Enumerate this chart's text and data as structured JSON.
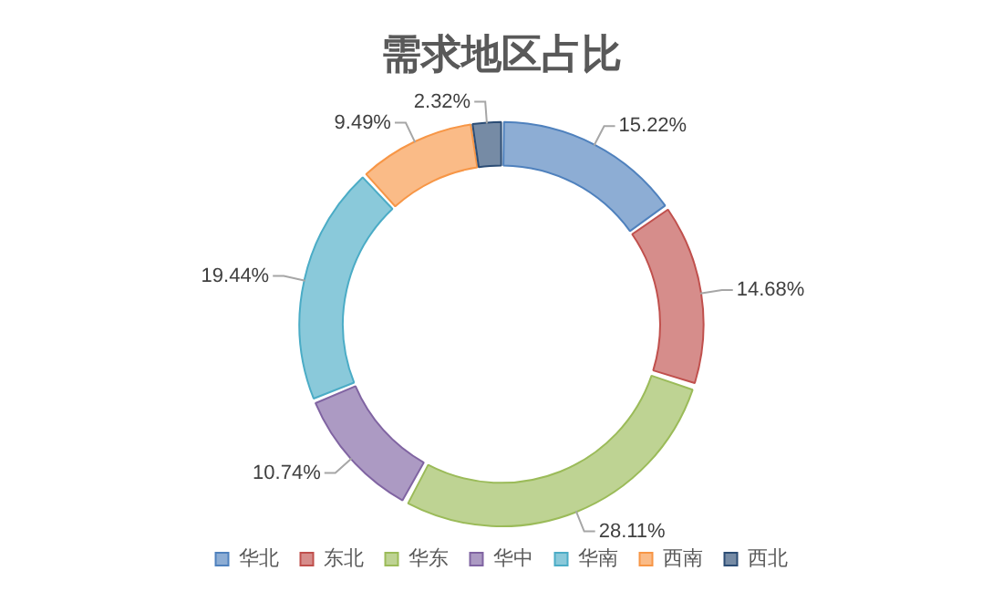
{
  "chart_data": {
    "type": "donut",
    "title": "需求地区占比",
    "categories": [
      "华北",
      "东北",
      "华东",
      "华中",
      "华南",
      "西南",
      "西北"
    ],
    "values": [
      15.22,
      14.68,
      28.11,
      10.74,
      19.44,
      9.49,
      2.32
    ],
    "colors": [
      "#4f81bd",
      "#c0504d",
      "#9bbb59",
      "#8064a2",
      "#4bacc6",
      "#f79646",
      "#2c4d75"
    ],
    "value_labels": [
      "15.22%",
      "14.68%",
      "28.11%",
      "10.74%",
      "19.44%",
      "9.49%",
      "2.32%"
    ],
    "legend": "bottom"
  }
}
